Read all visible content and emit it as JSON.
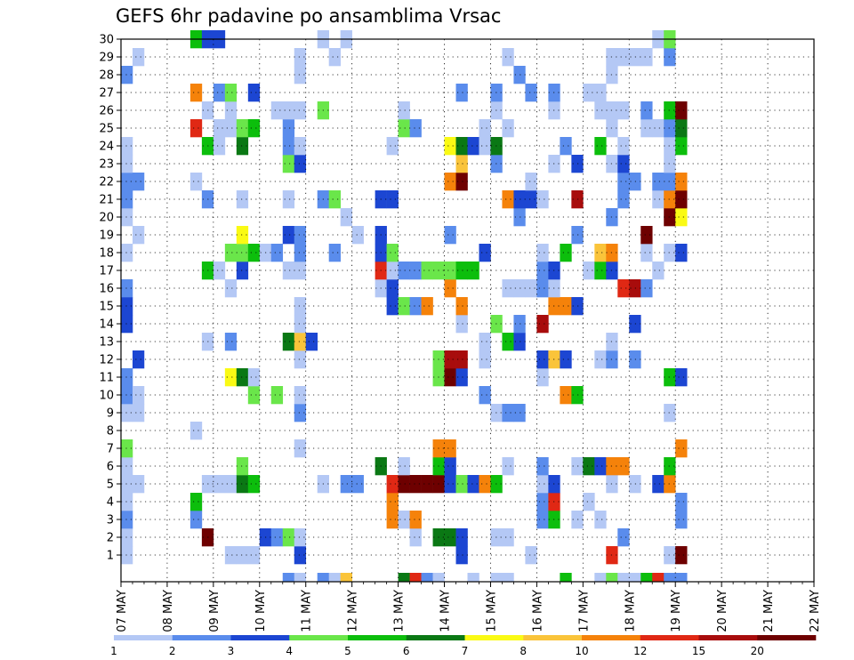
{
  "chart_data": {
    "type": "heatmap",
    "title": "GEFS 6hr padavine po ansamblima Vrsac",
    "x_tick_labels": [
      "07 MAY",
      "08 MAY",
      "09 MAY",
      "10 MAY",
      "11 MAY",
      "12 MAY",
      "13 MAY",
      "14 MAY",
      "15 MAY",
      "16 MAY",
      "17 MAY",
      "18 MAY",
      "19 MAY",
      "20 MAY",
      "21 MAY",
      "22 MAY"
    ],
    "y_tick_labels": [
      "1",
      "2",
      "3",
      "4",
      "5",
      "6",
      "7",
      "8",
      "9",
      "10",
      "11",
      "12",
      "13",
      "14",
      "15",
      "16",
      "17",
      "18",
      "19",
      "20",
      "21",
      "22",
      "23",
      "24",
      "25",
      "26",
      "27",
      "28",
      "29",
      "30"
    ],
    "steps_per_day": 4,
    "grid": "dotted",
    "colorbar": {
      "labels": [
        "1",
        "2",
        "3",
        "4",
        "5",
        "6",
        "7",
        "8",
        "10",
        "12",
        "15",
        "20"
      ],
      "colors": [
        "#b4c8f5",
        "#5a8cec",
        "#1c46d2",
        "#6ae64a",
        "#0cbe0c",
        "#0a7814",
        "#fafa14",
        "#fac43a",
        "#f5820a",
        "#e02814",
        "#a80c0c",
        "#6e0000"
      ]
    },
    "cells": [
      [
        0,
        1,
        1
      ],
      [
        0,
        2,
        1
      ],
      [
        0,
        3,
        2
      ],
      [
        0,
        4,
        1
      ],
      [
        0,
        5,
        1
      ],
      [
        0,
        6,
        1
      ],
      [
        0,
        7,
        4
      ],
      [
        0,
        9,
        1
      ],
      [
        0,
        10,
        2
      ],
      [
        0,
        11,
        2
      ],
      [
        0,
        14,
        3
      ],
      [
        0,
        15,
        3
      ],
      [
        0,
        16,
        2
      ],
      [
        0,
        18,
        1
      ],
      [
        0,
        20,
        1
      ],
      [
        0,
        21,
        2
      ],
      [
        0,
        22,
        2
      ],
      [
        0,
        23,
        1
      ],
      [
        0,
        24,
        1
      ],
      [
        0,
        28,
        2
      ],
      [
        1,
        5,
        1
      ],
      [
        1,
        9,
        1
      ],
      [
        1,
        10,
        1
      ],
      [
        1,
        12,
        3
      ],
      [
        1,
        19,
        1
      ],
      [
        1,
        22,
        2
      ],
      [
        1,
        29,
        1
      ],
      [
        6,
        3,
        2
      ],
      [
        6,
        4,
        5
      ],
      [
        6,
        8,
        1
      ],
      [
        6,
        22,
        1
      ],
      [
        6,
        25,
        10
      ],
      [
        6,
        27,
        9
      ],
      [
        6,
        30,
        5
      ],
      [
        7,
        2,
        12
      ],
      [
        7,
        5,
        1
      ],
      [
        7,
        13,
        1
      ],
      [
        7,
        17,
        5
      ],
      [
        7,
        21,
        2
      ],
      [
        7,
        24,
        5
      ],
      [
        7,
        26,
        1
      ],
      [
        7,
        30,
        3
      ],
      [
        8,
        5,
        1
      ],
      [
        8,
        17,
        1
      ],
      [
        8,
        24,
        1
      ],
      [
        8,
        25,
        1
      ],
      [
        8,
        27,
        2
      ],
      [
        8,
        30,
        3
      ],
      [
        9,
        1,
        1
      ],
      [
        9,
        5,
        1
      ],
      [
        9,
        11,
        7
      ],
      [
        9,
        13,
        2
      ],
      [
        9,
        16,
        1
      ],
      [
        9,
        18,
        4
      ],
      [
        9,
        25,
        1
      ],
      [
        9,
        26,
        1
      ],
      [
        9,
        27,
        4
      ],
      [
        10,
        1,
        1
      ],
      [
        10,
        5,
        6
      ],
      [
        10,
        6,
        4
      ],
      [
        10,
        11,
        6
      ],
      [
        10,
        17,
        3
      ],
      [
        10,
        18,
        4
      ],
      [
        10,
        19,
        7
      ],
      [
        10,
        21,
        1
      ],
      [
        10,
        24,
        6
      ],
      [
        10,
        25,
        4
      ],
      [
        11,
        1,
        1
      ],
      [
        11,
        5,
        5
      ],
      [
        11,
        10,
        4
      ],
      [
        11,
        11,
        1
      ],
      [
        11,
        18,
        5
      ],
      [
        11,
        25,
        5
      ],
      [
        11,
        27,
        3
      ],
      [
        12,
        2,
        3
      ],
      [
        12,
        18,
        1
      ],
      [
        13,
        2,
        2
      ],
      [
        13,
        10,
        4
      ],
      [
        13,
        18,
        2
      ],
      [
        13,
        26,
        1
      ],
      [
        14,
        0,
        2
      ],
      [
        14,
        2,
        4
      ],
      [
        14,
        13,
        6
      ],
      [
        14,
        17,
        1
      ],
      [
        14,
        19,
        3
      ],
      [
        14,
        21,
        1
      ],
      [
        14,
        23,
        4
      ],
      [
        14,
        24,
        2
      ],
      [
        14,
        25,
        2
      ],
      [
        14,
        26,
        1
      ],
      [
        15,
        0,
        1
      ],
      [
        15,
        1,
        3
      ],
      [
        15,
        2,
        1
      ],
      [
        15,
        7,
        1
      ],
      [
        15,
        9,
        2
      ],
      [
        15,
        10,
        1
      ],
      [
        15,
        12,
        1
      ],
      [
        15,
        13,
        8
      ],
      [
        15,
        14,
        1
      ],
      [
        15,
        15,
        1
      ],
      [
        15,
        17,
        1
      ],
      [
        15,
        18,
        2
      ],
      [
        15,
        19,
        2
      ],
      [
        15,
        23,
        3
      ],
      [
        15,
        24,
        1
      ],
      [
        15,
        26,
        1
      ],
      [
        15,
        28,
        1
      ],
      [
        15,
        29,
        1
      ],
      [
        16,
        13,
        3
      ],
      [
        17,
        0,
        2
      ],
      [
        17,
        5,
        1
      ],
      [
        17,
        21,
        2
      ],
      [
        17,
        26,
        4
      ],
      [
        17,
        30,
        1
      ],
      [
        18,
        0,
        1
      ],
      [
        18,
        18,
        2
      ],
      [
        18,
        21,
        4
      ],
      [
        18,
        29,
        1
      ],
      [
        19,
        0,
        8
      ],
      [
        19,
        5,
        2
      ],
      [
        19,
        20,
        1
      ],
      [
        19,
        30,
        1
      ],
      [
        20,
        5,
        2
      ],
      [
        20,
        19,
        1
      ],
      [
        22,
        6,
        6
      ],
      [
        22,
        16,
        1
      ],
      [
        22,
        17,
        10
      ],
      [
        22,
        18,
        3
      ],
      [
        22,
        19,
        3
      ],
      [
        22,
        21,
        3
      ],
      [
        23,
        3,
        9
      ],
      [
        23,
        4,
        9
      ],
      [
        23,
        5,
        10
      ],
      [
        23,
        15,
        3
      ],
      [
        23,
        16,
        3
      ],
      [
        23,
        17,
        1
      ],
      [
        23,
        18,
        4
      ],
      [
        23,
        21,
        3
      ],
      [
        23,
        24,
        1
      ],
      [
        24,
        0,
        6
      ],
      [
        24,
        3,
        1
      ],
      [
        24,
        5,
        12
      ],
      [
        24,
        6,
        1
      ],
      [
        24,
        15,
        4
      ],
      [
        24,
        17,
        2
      ],
      [
        24,
        25,
        4
      ],
      [
        24,
        26,
        1
      ],
      [
        25,
        0,
        10
      ],
      [
        25,
        2,
        1
      ],
      [
        25,
        3,
        9
      ],
      [
        25,
        5,
        12
      ],
      [
        25,
        15,
        2
      ],
      [
        25,
        17,
        2
      ],
      [
        25,
        25,
        2
      ],
      [
        26,
        0,
        2
      ],
      [
        26,
        5,
        12
      ],
      [
        26,
        15,
        9
      ],
      [
        26,
        17,
        4
      ],
      [
        27,
        0,
        1
      ],
      [
        27,
        2,
        6
      ],
      [
        27,
        5,
        12
      ],
      [
        27,
        6,
        5
      ],
      [
        27,
        7,
        9
      ],
      [
        27,
        11,
        4
      ],
      [
        27,
        12,
        4
      ],
      [
        27,
        17,
        4
      ],
      [
        28,
        2,
        6
      ],
      [
        28,
        5,
        3
      ],
      [
        28,
        6,
        3
      ],
      [
        28,
        7,
        9
      ],
      [
        28,
        11,
        12
      ],
      [
        28,
        12,
        11
      ],
      [
        28,
        16,
        9
      ],
      [
        28,
        17,
        4
      ],
      [
        28,
        19,
        2
      ],
      [
        28,
        22,
        9
      ],
      [
        28,
        24,
        7
      ],
      [
        29,
        1,
        3
      ],
      [
        29,
        2,
        3
      ],
      [
        29,
        5,
        4
      ],
      [
        29,
        11,
        3
      ],
      [
        29,
        12,
        11
      ],
      [
        29,
        14,
        1
      ],
      [
        29,
        15,
        9
      ],
      [
        29,
        17,
        5
      ],
      [
        29,
        22,
        12
      ],
      [
        29,
        23,
        8
      ],
      [
        29,
        24,
        6
      ],
      [
        29,
        27,
        2
      ],
      [
        30,
        0,
        1
      ],
      [
        30,
        5,
        3
      ],
      [
        30,
        17,
        5
      ],
      [
        30,
        24,
        3
      ],
      [
        31,
        5,
        9
      ],
      [
        31,
        10,
        2
      ],
      [
        31,
        12,
        1
      ],
      [
        31,
        13,
        1
      ],
      [
        31,
        18,
        3
      ],
      [
        31,
        24,
        1
      ],
      [
        31,
        25,
        1
      ],
      [
        32,
        0,
        1
      ],
      [
        32,
        2,
        1
      ],
      [
        32,
        5,
        5
      ],
      [
        32,
        9,
        1
      ],
      [
        32,
        14,
        4
      ],
      [
        32,
        23,
        2
      ],
      [
        32,
        24,
        6
      ],
      [
        32,
        26,
        1
      ],
      [
        32,
        27,
        2
      ],
      [
        33,
        0,
        1
      ],
      [
        33,
        2,
        1
      ],
      [
        33,
        6,
        1
      ],
      [
        33,
        9,
        2
      ],
      [
        33,
        13,
        5
      ],
      [
        33,
        16,
        1
      ],
      [
        33,
        21,
        9
      ],
      [
        33,
        25,
        1
      ],
      [
        33,
        29,
        1
      ],
      [
        34,
        9,
        2
      ],
      [
        34,
        13,
        3
      ],
      [
        34,
        14,
        2
      ],
      [
        34,
        16,
        1
      ],
      [
        34,
        20,
        2
      ],
      [
        34,
        21,
        3
      ],
      [
        34,
        28,
        2
      ],
      [
        35,
        1,
        1
      ],
      [
        35,
        16,
        1
      ],
      [
        35,
        21,
        3
      ],
      [
        35,
        22,
        1
      ],
      [
        35,
        27,
        2
      ],
      [
        36,
        3,
        2
      ],
      [
        36,
        4,
        2
      ],
      [
        36,
        5,
        1
      ],
      [
        36,
        6,
        2
      ],
      [
        36,
        11,
        1
      ],
      [
        36,
        12,
        3
      ],
      [
        36,
        14,
        11
      ],
      [
        36,
        16,
        2
      ],
      [
        36,
        17,
        2
      ],
      [
        36,
        18,
        1
      ],
      [
        36,
        21,
        1
      ],
      [
        37,
        3,
        5
      ],
      [
        37,
        4,
        10
      ],
      [
        37,
        5,
        3
      ],
      [
        37,
        12,
        8
      ],
      [
        37,
        15,
        9
      ],
      [
        37,
        16,
        1
      ],
      [
        37,
        17,
        3
      ],
      [
        37,
        23,
        1
      ],
      [
        37,
        26,
        1
      ],
      [
        37,
        27,
        2
      ],
      [
        38,
        0,
        5
      ],
      [
        38,
        10,
        9
      ],
      [
        38,
        12,
        3
      ],
      [
        38,
        15,
        9
      ],
      [
        38,
        18,
        5
      ],
      [
        38,
        24,
        2
      ],
      [
        39,
        3,
        1
      ],
      [
        39,
        6,
        1
      ],
      [
        39,
        10,
        5
      ],
      [
        39,
        15,
        3
      ],
      [
        39,
        19,
        2
      ],
      [
        39,
        21,
        11
      ],
      [
        39,
        23,
        3
      ],
      [
        40,
        4,
        1
      ],
      [
        40,
        6,
        6
      ],
      [
        40,
        17,
        1
      ],
      [
        40,
        27,
        1
      ],
      [
        41,
        0,
        1
      ],
      [
        41,
        3,
        1
      ],
      [
        41,
        6,
        3
      ],
      [
        41,
        12,
        1
      ],
      [
        41,
        17,
        5
      ],
      [
        41,
        18,
        8
      ],
      [
        41,
        24,
        5
      ],
      [
        41,
        26,
        1
      ],
      [
        41,
        27,
        1
      ],
      [
        42,
        0,
        4
      ],
      [
        42,
        1,
        10
      ],
      [
        42,
        5,
        1
      ],
      [
        42,
        6,
        9
      ],
      [
        42,
        12,
        2
      ],
      [
        42,
        13,
        1
      ],
      [
        42,
        17,
        3
      ],
      [
        42,
        18,
        9
      ],
      [
        42,
        20,
        2
      ],
      [
        42,
        23,
        1
      ],
      [
        42,
        25,
        1
      ],
      [
        42,
        26,
        1
      ],
      [
        42,
        28,
        1
      ],
      [
        42,
        29,
        1
      ],
      [
        43,
        0,
        1
      ],
      [
        43,
        2,
        2
      ],
      [
        43,
        6,
        9
      ],
      [
        43,
        16,
        10
      ],
      [
        43,
        21,
        2
      ],
      [
        43,
        22,
        2
      ],
      [
        43,
        23,
        3
      ],
      [
        43,
        24,
        1
      ],
      [
        43,
        26,
        1
      ],
      [
        43,
        29,
        1
      ],
      [
        44,
        0,
        1
      ],
      [
        44,
        5,
        1
      ],
      [
        44,
        12,
        2
      ],
      [
        44,
        14,
        3
      ],
      [
        44,
        16,
        11
      ],
      [
        44,
        22,
        2
      ],
      [
        44,
        29,
        1
      ],
      [
        45,
        0,
        5
      ],
      [
        45,
        16,
        2
      ],
      [
        45,
        18,
        1
      ],
      [
        45,
        19,
        12
      ],
      [
        45,
        25,
        1
      ],
      [
        45,
        26,
        2
      ],
      [
        45,
        29,
        1
      ],
      [
        46,
        0,
        10
      ],
      [
        46,
        5,
        3
      ],
      [
        46,
        17,
        1
      ],
      [
        46,
        21,
        1
      ],
      [
        46,
        22,
        2
      ],
      [
        46,
        25,
        1
      ],
      [
        46,
        30,
        1
      ],
      [
        47,
        0,
        2
      ],
      [
        47,
        1,
        1
      ],
      [
        47,
        5,
        9
      ],
      [
        47,
        6,
        5
      ],
      [
        47,
        9,
        1
      ],
      [
        47,
        11,
        5
      ],
      [
        47,
        18,
        1
      ],
      [
        47,
        20,
        12
      ],
      [
        47,
        21,
        9
      ],
      [
        47,
        22,
        2
      ],
      [
        47,
        23,
        1
      ],
      [
        47,
        24,
        1
      ],
      [
        47,
        25,
        2
      ],
      [
        47,
        26,
        5
      ],
      [
        47,
        29,
        2
      ],
      [
        47,
        30,
        4
      ],
      [
        48,
        0,
        2
      ],
      [
        48,
        1,
        12
      ],
      [
        48,
        3,
        2
      ],
      [
        48,
        4,
        2
      ],
      [
        48,
        7,
        9
      ],
      [
        48,
        11,
        3
      ],
      [
        48,
        18,
        3
      ],
      [
        48,
        20,
        7
      ],
      [
        48,
        21,
        12
      ],
      [
        48,
        22,
        9
      ],
      [
        48,
        24,
        5
      ],
      [
        48,
        25,
        6
      ],
      [
        48,
        26,
        12
      ]
    ]
  }
}
